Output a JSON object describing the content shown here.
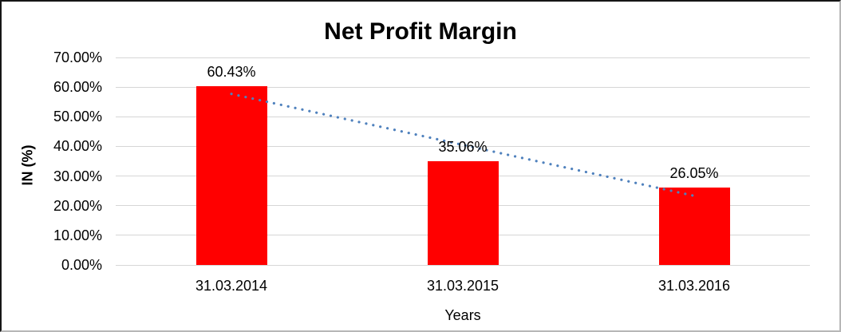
{
  "chart_data": {
    "type": "bar",
    "title": "Net Profit Margin",
    "xlabel": "Years",
    "ylabel": "IN (%)",
    "categories": [
      "31.03.2014",
      "31.03.2015",
      "31.03.2016"
    ],
    "values": [
      60.43,
      35.06,
      26.05
    ],
    "data_labels": [
      "60.43%",
      "35.06%",
      "26.05%"
    ],
    "ytick_labels": [
      "0.00%",
      "10.00%",
      "20.00%",
      "30.00%",
      "40.00%",
      "50.00%",
      "60.00%",
      "70.00%"
    ],
    "ylim": [
      0,
      70
    ],
    "ytick_step": 10,
    "grid": true,
    "legend": false,
    "bar_color": "#ff0000",
    "gridline_color": "#d6d6d6",
    "trendline": {
      "type": "linear",
      "style": "dotted",
      "color": "#4f81bd"
    }
  }
}
